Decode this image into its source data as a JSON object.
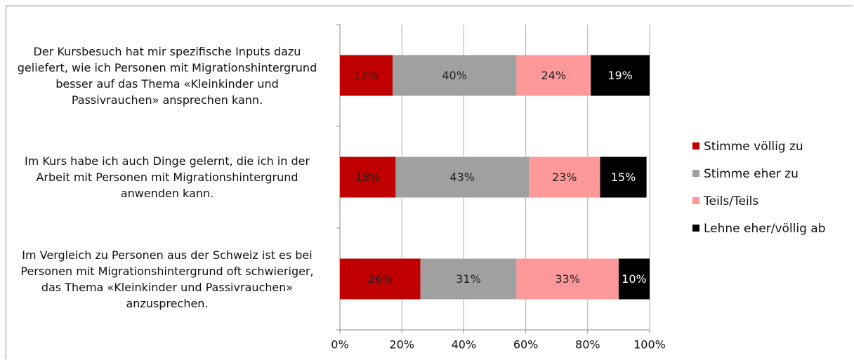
{
  "chart_data": {
    "type": "stacked_barh",
    "categories": [
      "Der Kursbesuch hat mir spezifische Inputs dazu geliefert, wie ich Personen mit Migrationshintergrund besser auf das Thema «Kleinkinder und Passivrauchen» ansprechen kann.",
      "Im Kurs habe ich auch Dinge gelernt, die ich in der Arbeit mit Personen mit Migrationshintergrund anwenden kann.",
      "Im Vergleich zu Personen aus der Schweiz ist es bei Personen mit Migrationshintergrund oft schwieriger, das Thema «Kleinkinder und Passivrauchen» anzusprechen."
    ],
    "series": [
      {
        "name": "Stimme völlig zu",
        "color": "#c00000",
        "values": [
          17,
          18,
          26
        ],
        "value_labels": [
          "17%",
          "18%",
          "26%"
        ]
      },
      {
        "name": "Stimme eher zu",
        "color": "#a0a0a0",
        "values": [
          40,
          43,
          31
        ],
        "value_labels": [
          "40%",
          "43%",
          "31%"
        ]
      },
      {
        "name": "Teils/Teils",
        "color": "#ff9999",
        "values": [
          24,
          23,
          33
        ],
        "value_labels": [
          "24%",
          "23%",
          "33%"
        ]
      },
      {
        "name": "Lehne eher/völlig ab",
        "color": "#000000",
        "values": [
          19,
          15,
          10
        ],
        "value_labels": [
          "19%",
          "15%",
          "10%"
        ]
      }
    ],
    "xlim": [
      0,
      100
    ],
    "xticks": [
      {
        "value": 0,
        "label": "0%"
      },
      {
        "value": 20,
        "label": "20%"
      },
      {
        "value": 40,
        "label": "40%"
      },
      {
        "value": 60,
        "label": "60%"
      },
      {
        "value": 80,
        "label": "80%"
      },
      {
        "value": 100,
        "label": "100%"
      }
    ],
    "grid": true,
    "legend": "right"
  }
}
